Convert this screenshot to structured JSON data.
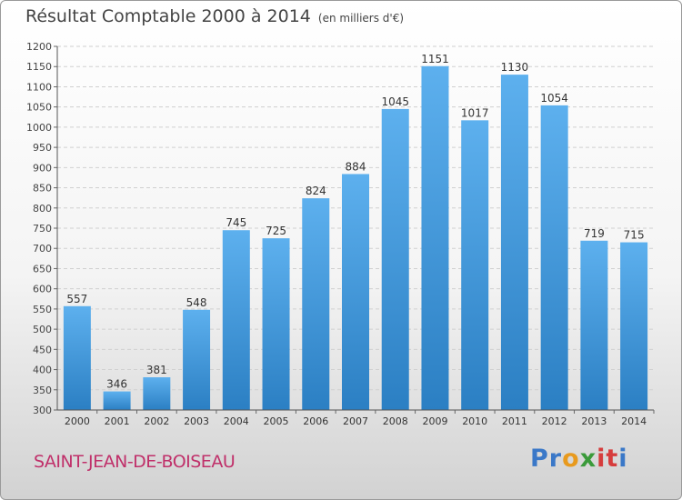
{
  "header": {
    "title": "Résultat Comptable 2000 à 2014",
    "unit": "(en milliers d'€)"
  },
  "footer": {
    "commune": "SAINT-JEAN-DE-BOISEAU"
  },
  "logo": {
    "letters": [
      "P",
      "r",
      "o",
      "x",
      "i",
      "t",
      "i"
    ],
    "colors": [
      "#3a78c8",
      "#3a78c8",
      "#e89a1e",
      "#3a9a3a",
      "#d63c3c",
      "#d63c3c",
      "#3a78c8"
    ]
  },
  "chart_data": {
    "type": "bar",
    "title": "Résultat Comptable 2000 à 2014",
    "categories": [
      "2000",
      "2001",
      "2002",
      "2003",
      "2004",
      "2005",
      "2006",
      "2007",
      "2008",
      "2009",
      "2010",
      "2011",
      "2012",
      "2013",
      "2014"
    ],
    "values": [
      557,
      346,
      381,
      548,
      745,
      725,
      824,
      884,
      1045,
      1151,
      1017,
      1130,
      1054,
      719,
      715
    ],
    "ylim": [
      300,
      1200
    ],
    "yticks": [
      300,
      350,
      400,
      450,
      500,
      550,
      600,
      650,
      700,
      750,
      800,
      850,
      900,
      950,
      1000,
      1050,
      1100,
      1150,
      1200
    ],
    "grid": true,
    "bar_color": "#4aa0e0"
  }
}
